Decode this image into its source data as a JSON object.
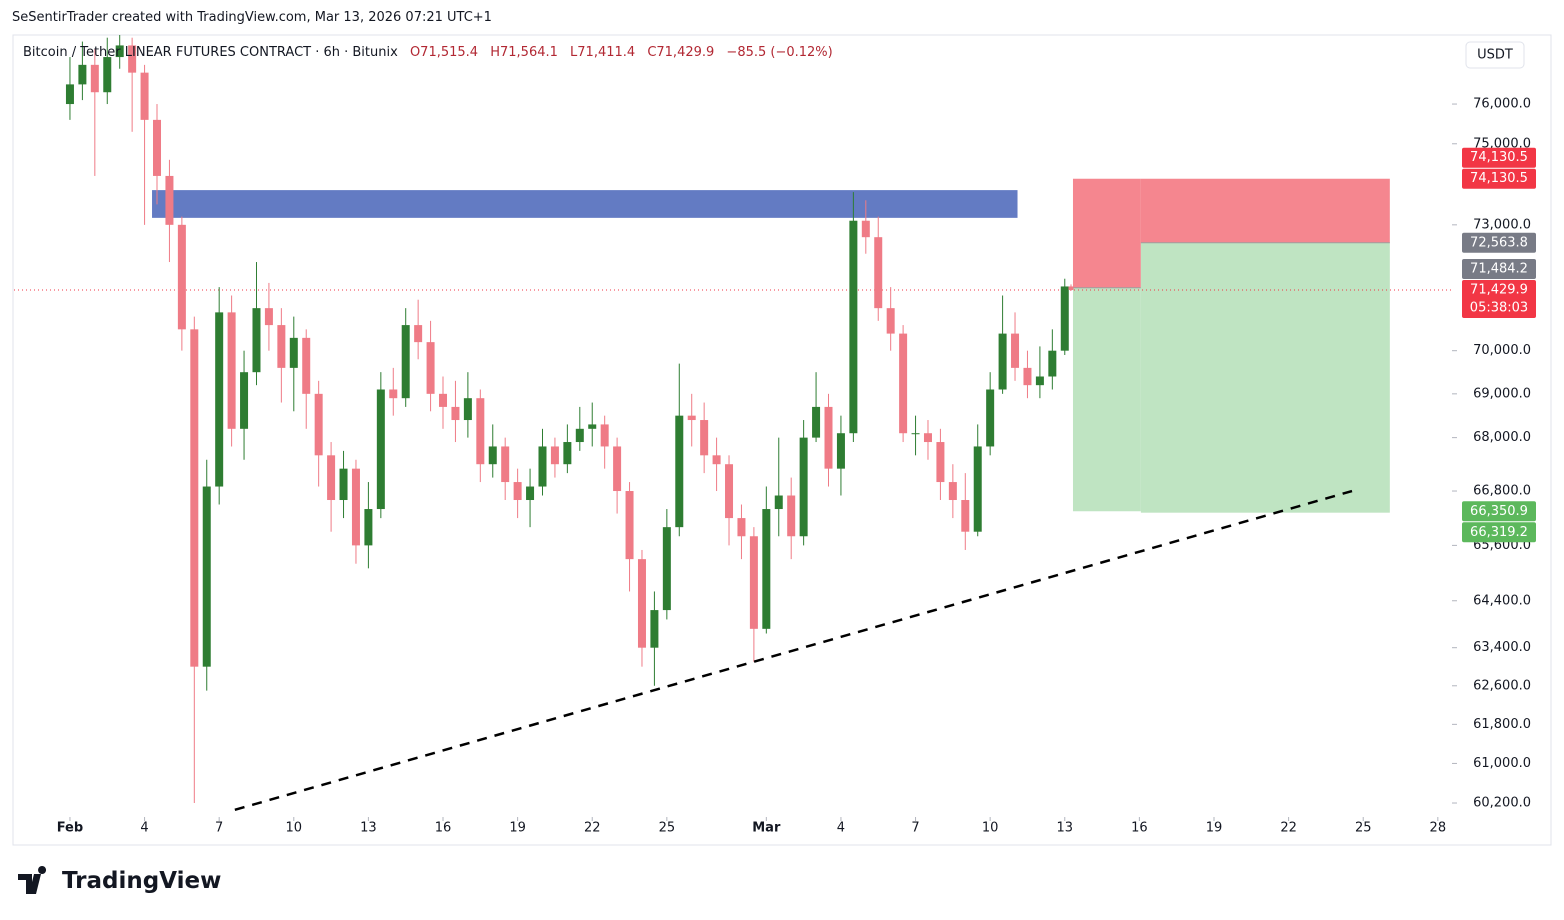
{
  "header": {
    "attribution": "SeSentirTrader created with TradingView.com, Mar 13, 2026 07:21 UTC+1"
  },
  "footer": {
    "brand": "TradingView"
  },
  "chart_data": {
    "type": "candlestick",
    "symbol": "Bitcoin / Tether LINEAR FUTURES CONTRACT · 6h · Bitunix",
    "ohlc_text": [
      "O71,515.4",
      "H71,564.1",
      "L71,411.4",
      "C71,429.9"
    ],
    "change_text": "−85.5 (−0.12%)",
    "currency": "USDT",
    "countdown": "05:38:03",
    "log_scale": true,
    "grid": false,
    "up_color": "#2e7d32",
    "down_color": "#ef7b86",
    "xlim": [
      -2.25,
      55.57
    ],
    "xticks": [
      {
        "value": 0,
        "label": "Feb"
      },
      {
        "value": 3,
        "label": "4"
      },
      {
        "value": 6,
        "label": "7"
      },
      {
        "value": 9,
        "label": "10"
      },
      {
        "value": 12,
        "label": "13"
      },
      {
        "value": 15,
        "label": "16"
      },
      {
        "value": 18,
        "label": "19"
      },
      {
        "value": 21,
        "label": "22"
      },
      {
        "value": 24,
        "label": "25"
      },
      {
        "value": 28,
        "label": "Mar"
      },
      {
        "value": 31,
        "label": "4"
      },
      {
        "value": 34,
        "label": "7"
      },
      {
        "value": 37,
        "label": "10"
      },
      {
        "value": 40,
        "label": "13"
      },
      {
        "value": 43,
        "label": "16"
      },
      {
        "value": 46,
        "label": "19"
      },
      {
        "value": 49,
        "label": "22"
      },
      {
        "value": 52,
        "label": "25"
      },
      {
        "value": 55,
        "label": "28"
      }
    ],
    "ylim": [
      59960,
      77770
    ],
    "yticks": [
      {
        "value": 76000,
        "label": "76,000.0"
      },
      {
        "value": 75000,
        "label": "75,000.0"
      },
      {
        "value": 73000,
        "label": "73,000.0"
      },
      {
        "value": 70000,
        "label": "70,000.0"
      },
      {
        "value": 69000,
        "label": "69,000.0"
      },
      {
        "value": 68000,
        "label": "68,000.0"
      },
      {
        "value": 66800,
        "label": "66,800.0"
      },
      {
        "value": 65600,
        "label": "65,600.0"
      },
      {
        "value": 64400,
        "label": "64,400.0"
      },
      {
        "value": 63400,
        "label": "63,400.0"
      },
      {
        "value": 62600,
        "label": "62,600.0"
      },
      {
        "value": 61800,
        "label": "61,800.0"
      },
      {
        "value": 61000,
        "label": "61,000.0"
      },
      {
        "value": 60200,
        "label": "60,200.0"
      }
    ],
    "x": [
      0,
      0.5,
      1,
      1.5,
      2,
      2.5,
      3,
      3.5,
      4,
      4.5,
      5,
      5.5,
      6,
      6.5,
      7,
      7.5,
      8,
      8.5,
      9,
      9.5,
      10,
      10.5,
      11,
      11.5,
      12,
      12.5,
      13,
      13.5,
      14,
      14.5,
      15,
      15.5,
      16,
      16.5,
      17,
      17.5,
      18,
      18.5,
      19,
      19.5,
      20,
      20.5,
      21,
      21.5,
      22,
      22.5,
      23,
      23.5,
      24,
      24.5,
      25,
      25.5,
      26,
      26.5,
      27,
      27.5,
      28,
      28.5,
      29,
      29.5,
      30,
      30.5,
      31,
      31.5,
      32,
      32.5,
      33,
      33.5,
      34,
      34.5,
      35,
      35.5,
      36,
      36.5,
      37,
      37.5,
      38,
      38.5,
      39,
      39.5,
      40,
      40.25
    ],
    "open": [
      76000,
      76500,
      77000,
      76300,
      77200,
      77500,
      76800,
      75600,
      74200,
      73000,
      70500,
      63000,
      66900,
      70900,
      68200,
      69500,
      71000,
      70600,
      69600,
      70300,
      69000,
      67600,
      66600,
      67300,
      65600,
      66400,
      69100,
      68900,
      70600,
      70200,
      69000,
      68700,
      68400,
      68900,
      67400,
      67800,
      67000,
      66600,
      66900,
      67800,
      67400,
      67900,
      68200,
      68300,
      67800,
      66800,
      65300,
      63400,
      64200,
      66000,
      68500,
      68400,
      67600,
      67400,
      66200,
      65800,
      63800,
      66400,
      66700,
      65800,
      68000,
      68700,
      67300,
      68100,
      73100,
      72700,
      71000,
      70400,
      68100,
      68100,
      67900,
      67000,
      66600,
      65900,
      67800,
      69100,
      70400,
      69600,
      69200,
      69400,
      70000,
      71515.4
    ],
    "high": [
      77200,
      77600,
      77400,
      77700,
      77800,
      77700,
      77000,
      76000,
      74600,
      73200,
      70800,
      67500,
      71500,
      71300,
      70000,
      72100,
      71600,
      71000,
      70800,
      70500,
      69300,
      67900,
      67700,
      67500,
      67000,
      69500,
      69600,
      71000,
      71200,
      70700,
      69400,
      69300,
      69500,
      69100,
      68300,
      68000,
      67300,
      67300,
      68200,
      68000,
      68300,
      68700,
      68800,
      68500,
      68000,
      67000,
      65500,
      64600,
      66400,
      69700,
      69000,
      68800,
      68000,
      67600,
      66500,
      66000,
      66900,
      68000,
      67100,
      68400,
      69500,
      69000,
      68500,
      73800,
      73600,
      73200,
      71500,
      70600,
      68500,
      68400,
      68200,
      67400,
      67200,
      68300,
      69500,
      71300,
      70900,
      70000,
      70100,
      70500,
      71700,
      71564.1
    ],
    "low": [
      75600,
      76100,
      74200,
      76000,
      76900,
      75300,
      73000,
      73500,
      72100,
      70000,
      60200,
      62500,
      66500,
      67800,
      67500,
      69200,
      70000,
      68800,
      68600,
      68200,
      66900,
      65900,
      66200,
      65200,
      65100,
      66200,
      68500,
      68700,
      69800,
      68600,
      68200,
      67900,
      68000,
      67000,
      67100,
      66600,
      66200,
      66000,
      66700,
      67100,
      67200,
      67700,
      67800,
      67300,
      66300,
      64600,
      63000,
      62600,
      64000,
      65800,
      67800,
      67200,
      66800,
      65600,
      65300,
      63100,
      63700,
      65800,
      65300,
      65600,
      67900,
      66900,
      66700,
      67900,
      72300,
      70700,
      70000,
      67900,
      67600,
      67500,
      66600,
      66200,
      65500,
      65800,
      67600,
      69000,
      69300,
      68900,
      68900,
      69100,
      69900,
      71411.4
    ],
    "close": [
      76500,
      77000,
      76300,
      77200,
      77500,
      76800,
      75600,
      74200,
      73000,
      70500,
      63000,
      66900,
      70900,
      68200,
      69500,
      71000,
      70600,
      69600,
      70300,
      69000,
      67600,
      66600,
      67300,
      65600,
      66400,
      69100,
      68900,
      70600,
      70200,
      69000,
      68700,
      68400,
      68900,
      67400,
      67800,
      67000,
      66600,
      66900,
      67800,
      67400,
      67900,
      68200,
      68300,
      67800,
      66800,
      65300,
      63400,
      64200,
      66000,
      68500,
      68400,
      67600,
      67400,
      66200,
      65800,
      63800,
      66400,
      66700,
      65800,
      68000,
      68700,
      67300,
      68100,
      73100,
      72700,
      71000,
      70400,
      68100,
      68100,
      67900,
      67000,
      66600,
      65900,
      67800,
      69100,
      70400,
      69600,
      69200,
      69400,
      70000,
      71515.4,
      71429.9
    ],
    "last_price": {
      "value": 71429.9,
      "label": "71,429.9"
    },
    "zones": [
      {
        "x": [
          3.3,
          38.1
        ],
        "y": [
          73170,
          73850
        ],
        "color": "#5b74c0"
      }
    ],
    "trendline": {
      "x": [
        6.63,
        51.55
      ],
      "y": [
        60063,
        66800
      ]
    },
    "positions": [
      {
        "x": [
          40.33,
          43.06
        ],
        "stop": {
          "value": 74130.5,
          "label": "74,130.5"
        },
        "entry": {
          "value": 71484.2,
          "label": "71,484.2"
        },
        "target": {
          "value": 66350.9,
          "label": "66,350.9"
        }
      },
      {
        "x": [
          43.06,
          53.07
        ],
        "stop": {
          "value": 74130.5,
          "label": "74,130.5"
        },
        "entry": {
          "value": 72563.8,
          "label": "72,563.8"
        },
        "target": {
          "value": 66319.2,
          "label": "66,319.2"
        }
      }
    ],
    "stop_color": "#f5868f",
    "target_color": "#bfe4c2",
    "label_colors": {
      "stop": "#f23645",
      "entry": "#787b86",
      "target": "#5cb85c",
      "last": "#f23645"
    }
  }
}
